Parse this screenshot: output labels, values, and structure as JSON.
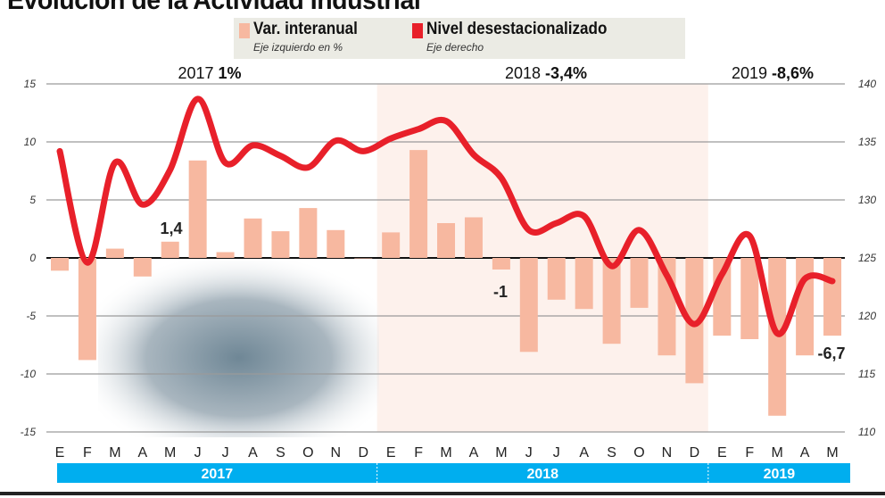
{
  "title": "Evolución de la Actividad Industrial",
  "legend": {
    "bars": {
      "label": "Var. interanual",
      "sub": "Eje izquierdo en %",
      "color": "#f7b8a0"
    },
    "line": {
      "label": "Nivel desestacionalizado",
      "sub": "Eje derecho",
      "color": "#e8202a"
    }
  },
  "year_labels": [
    {
      "year": "2017",
      "value": "1%"
    },
    {
      "year": "2018",
      "value": "-3,4%"
    },
    {
      "year": "2019",
      "value": "-8,6%"
    }
  ],
  "annotations": [
    "1,4",
    "-1",
    "-6,7"
  ],
  "colors": {
    "band": "#00aeef",
    "shade_2018": "#fdf1ec",
    "grid": "#9a9a9a"
  },
  "chart_data": {
    "type": "bar+line",
    "categories": [
      "E",
      "F",
      "M",
      "A",
      "M",
      "J",
      "J",
      "A",
      "S",
      "O",
      "N",
      "D",
      "E",
      "F",
      "M",
      "A",
      "M",
      "J",
      "J",
      "A",
      "S",
      "O",
      "N",
      "D",
      "E",
      "F",
      "M",
      "A",
      "M"
    ],
    "years": [
      {
        "label": "2017",
        "months": 12
      },
      {
        "label": "2018",
        "months": 12
      },
      {
        "label": "2019",
        "months": 5
      }
    ],
    "left_axis": {
      "ylim": [
        -15,
        15
      ],
      "ticks": [
        15,
        10,
        5,
        0,
        -5,
        -10,
        -15
      ]
    },
    "right_axis": {
      "ylim": [
        110,
        140
      ],
      "ticks": [
        140,
        135,
        130,
        125,
        120,
        115,
        110
      ]
    },
    "grid": true,
    "series": [
      {
        "name": "Var. interanual",
        "axis": "left",
        "kind": "bar",
        "values": [
          -1.1,
          -8.8,
          0.8,
          -1.6,
          1.4,
          8.4,
          0.5,
          3.4,
          2.3,
          4.3,
          2.4,
          0,
          2.2,
          9.3,
          3.0,
          3.5,
          -1.0,
          -8.1,
          -3.6,
          -4.4,
          -7.4,
          -4.3,
          -8.4,
          -10.8,
          -6.7,
          -7.0,
          -13.6,
          -8.4,
          -6.7
        ]
      },
      {
        "name": "Nivel desestacionalizado",
        "axis": "right",
        "kind": "line",
        "values": [
          134.2,
          124.6,
          133.2,
          129.6,
          132.6,
          138.7,
          133.2,
          134.7,
          133.8,
          132.8,
          135.1,
          134.2,
          135.3,
          136.1,
          136.8,
          133.9,
          131.9,
          127.4,
          128.0,
          128.6,
          124.3,
          127.4,
          123.5,
          119.3,
          123.6,
          126.9,
          118.5,
          123.2,
          123.0
        ]
      }
    ]
  }
}
